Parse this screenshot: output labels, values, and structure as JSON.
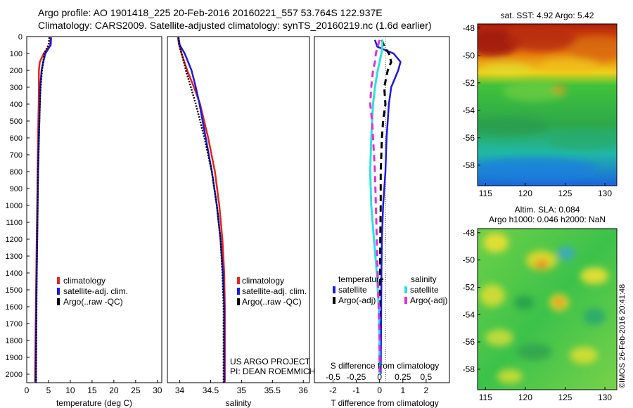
{
  "header": {
    "title_line1": "Argo profile: AO 1901418_225 20-Feb-2016 20160221_557 53.764S 122.937E",
    "title_line2": "Climatology: CARS2009. Satellite-adjusted climatology: synTS_20160219.nc (1.6d earlier)"
  },
  "colors": {
    "climatology": "#e8231a",
    "satellite": "#1a1ae6",
    "argo": "#000000",
    "sal_satellite": "#2fe0e0",
    "sal_argo": "#e32ee3"
  },
  "depth_ticks": [
    "0",
    "100",
    "200",
    "300",
    "400",
    "500",
    "600",
    "700",
    "800",
    "900",
    "1000",
    "1100",
    "1200",
    "1300",
    "1400",
    "1500",
    "1600",
    "1700",
    "1800",
    "1900",
    "2000"
  ],
  "legend": {
    "climatology": "climatology",
    "satellite_adj": "satellite-adj. clim.",
    "argo": "Argo(..raw -QC)"
  },
  "diff_legend": {
    "temperature": "temperature",
    "salinity": "salinity",
    "satellite": "satellite",
    "argo_adj": "Argo(-adj)"
  },
  "credits": {
    "line1": "US ARGO PROJECT",
    "line2": "PI: DEAN ROEMMICH"
  },
  "chart_data": [
    {
      "type": "line",
      "xlabel": "temperature (deg C)",
      "ylabel": "",
      "xlim": [
        0,
        31
      ],
      "ylim": [
        2050,
        0
      ],
      "xticks": [
        "0",
        "5",
        "10",
        "15",
        "20",
        "25",
        "30"
      ],
      "depth": [
        5,
        50,
        100,
        150,
        200,
        300,
        400,
        600,
        800,
        1000,
        1200,
        1400,
        1600,
        1800,
        2000,
        2050
      ],
      "series": [
        {
          "name": "climatology",
          "values": [
            5.5,
            5.4,
            3.9,
            3.0,
            2.8,
            2.8,
            2.75,
            2.6,
            2.5,
            2.4,
            2.3,
            2.2,
            2.1,
            2.0,
            1.9,
            1.9
          ]
        },
        {
          "name": "satellite-adj. clim.",
          "values": [
            5.6,
            5.5,
            4.3,
            3.8,
            3.4,
            3.1,
            3.0,
            2.8,
            2.6,
            2.5,
            2.4,
            2.3,
            2.2,
            2.15,
            2.1,
            2.1
          ]
        },
        {
          "name": "Argo(..raw -QC)",
          "values": [
            5.2,
            5.0,
            4.0,
            3.8,
            3.5,
            3.2,
            3.0,
            2.8,
            2.6,
            2.5,
            2.4,
            2.3,
            2.25,
            2.2,
            2.15,
            2.15
          ]
        }
      ]
    },
    {
      "type": "line",
      "xlabel": "salinity",
      "ylabel": "",
      "xlim": [
        33.8,
        36.1
      ],
      "ylim": [
        2050,
        0
      ],
      "xticks": [
        "34",
        "34.5",
        "35",
        "35.5",
        "36"
      ],
      "depth": [
        5,
        50,
        100,
        200,
        300,
        400,
        600,
        800,
        1000,
        1200,
        1400,
        1600,
        1800,
        2000,
        2050
      ],
      "series": [
        {
          "name": "climatology",
          "values": [
            33.97,
            33.99,
            34.03,
            34.12,
            34.23,
            34.33,
            34.46,
            34.57,
            34.64,
            34.69,
            34.72,
            34.73,
            34.73,
            34.73,
            34.73
          ]
        },
        {
          "name": "satellite-adj. clim.",
          "values": [
            33.98,
            34.0,
            34.08,
            34.19,
            34.26,
            34.32,
            34.42,
            34.52,
            34.6,
            34.66,
            34.7,
            34.72,
            34.72,
            34.72,
            34.72
          ]
        },
        {
          "name": "Argo(..raw -QC)",
          "values": [
            33.98,
            33.99,
            34.03,
            34.1,
            34.18,
            34.26,
            34.4,
            34.52,
            34.6,
            34.66,
            34.69,
            34.71,
            34.71,
            34.71,
            34.71
          ]
        }
      ]
    },
    {
      "type": "line",
      "xlabel": "T difference from climatology",
      "top_axis_label": "S difference from climatology",
      "ylabel": "",
      "xlim": [
        -2.8,
        3.0
      ],
      "ylim": [
        2050,
        0
      ],
      "xticks": [
        "-2",
        "-1",
        "0",
        "1",
        "2"
      ],
      "top_xticks": [
        "-0.5",
        "-0.25",
        "0",
        "0.25",
        "0.5"
      ],
      "depth": [
        20,
        60,
        100,
        150,
        200,
        300,
        400,
        500,
        600,
        800,
        1000,
        1200,
        1400,
        1600,
        1800,
        2000
      ],
      "series": [
        {
          "name": "temperature satellite",
          "values": [
            -0.2,
            -0.1,
            0.6,
            0.9,
            0.8,
            0.5,
            0.4,
            0.35,
            0.3,
            0.25,
            0.15,
            0.1,
            0.08,
            0.07,
            0.06,
            0.05
          ]
        },
        {
          "name": "temperature Argo(-adj)",
          "values": [
            0.1,
            0.2,
            0.4,
            0.5,
            0.35,
            0.2,
            0.25,
            0.15,
            0.1,
            0.05,
            0.05,
            0.03,
            0.02,
            0.01,
            0.0,
            0.0
          ]
        },
        {
          "name": "salinity satellite",
          "values": [
            0.03,
            0.03,
            0.02,
            0.0,
            -0.02,
            -0.05,
            -0.07,
            -0.08,
            -0.09,
            -0.1,
            -0.09,
            -0.06,
            -0.03,
            -0.01,
            0.0,
            0.0
          ]
        },
        {
          "name": "salinity Argo(-adj)",
          "values": [
            0.0,
            -0.02,
            -0.04,
            -0.05,
            -0.07,
            -0.09,
            -0.1,
            -0.08,
            -0.07,
            -0.05,
            -0.04,
            -0.03,
            -0.02,
            -0.01,
            0.0,
            0.0
          ]
        }
      ]
    },
    {
      "type": "heatmap",
      "title": "sat. SST: 4.92 Argo: 5.42",
      "xlim": [
        114,
        131.5
      ],
      "ylim": [
        -59.5,
        -47.7
      ],
      "xticks": [
        "115",
        "120",
        "125",
        "130"
      ],
      "yticks": [
        "-48",
        "-50",
        "-52",
        "-54",
        "-56",
        "-58"
      ]
    },
    {
      "type": "heatmap",
      "title": "Altim. SLA: 0.084",
      "subtitle": "Argo h1000: 0.046 h2000: NaN",
      "xlim": [
        114,
        131.5
      ],
      "ylim": [
        -59.5,
        -47.7
      ],
      "xticks": [
        "115",
        "120",
        "125",
        "130"
      ],
      "yticks": [
        "-48",
        "-50",
        "-52",
        "-54",
        "-56",
        "-58"
      ]
    }
  ],
  "footer_stamp": "©IMOS 26-Feb-2016 20:41:48"
}
